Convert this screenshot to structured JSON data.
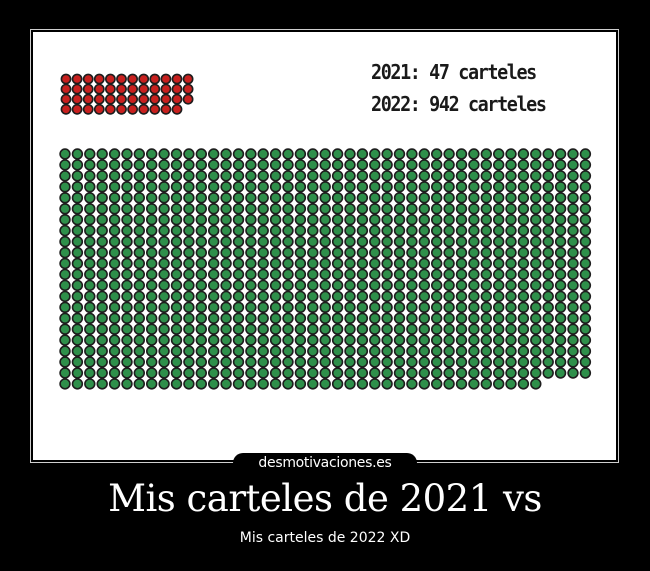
{
  "chart_data": {
    "type": "pictogram",
    "series": [
      {
        "label": "2021: 47 carteles",
        "year": "2021",
        "count": 47,
        "color": "#c8201e",
        "columns": 12
      },
      {
        "label": "2022: 942 carteles",
        "year": "2022",
        "count": 942,
        "color": "#2e8f4a",
        "columns": 43
      }
    ]
  },
  "watermark": "desmotivaciones.es",
  "caption": {
    "title": "Mis carteles de 2021 vs",
    "subtitle": "Mis carteles de 2022 XD"
  }
}
